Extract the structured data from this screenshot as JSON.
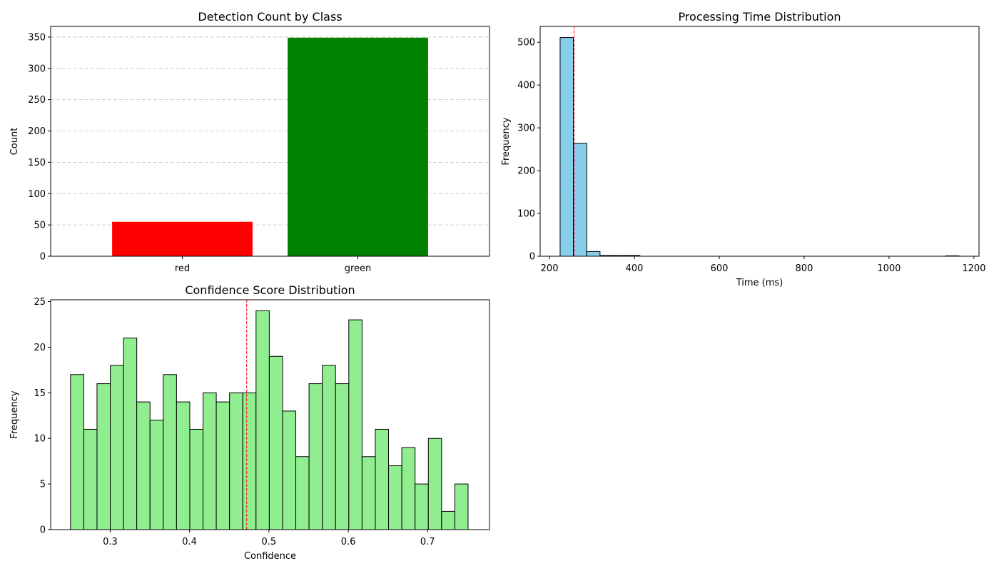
{
  "chart_data": [
    {
      "type": "bar",
      "title": "Detection Count by Class",
      "xlabel": "",
      "ylabel": "Count",
      "categories": [
        "red",
        "green"
      ],
      "values": [
        55,
        349
      ],
      "bar_colors": [
        "#ff0000",
        "#008000"
      ],
      "ylim": [
        0,
        367
      ],
      "yticks": [
        0,
        50,
        100,
        150,
        200,
        250,
        300,
        350
      ],
      "grid": "y-dashed"
    },
    {
      "type": "bar",
      "title": "Processing Time Distribution",
      "xlabel": "Time (ms)",
      "ylabel": "Frequency",
      "bin_start": 225,
      "bin_width": 31.33,
      "counts": [
        511,
        264,
        11,
        2,
        2,
        2,
        0,
        0,
        0,
        0,
        0,
        0,
        0,
        0,
        0,
        0,
        0,
        0,
        0,
        0,
        0,
        0,
        0,
        0,
        0,
        0,
        0,
        0,
        0,
        1
      ],
      "bar_color": "#87ceeb",
      "mean_line": 258,
      "mean_line_color": "#ff0000",
      "xlim": [
        178,
        1212
      ],
      "ylim": [
        0,
        537
      ],
      "xticks": [
        200,
        400,
        600,
        800,
        1000,
        1200
      ],
      "yticks": [
        0,
        100,
        200,
        300,
        400,
        500
      ],
      "grid": "off"
    },
    {
      "type": "bar",
      "title": "Confidence Score Distribution",
      "xlabel": "Confidence",
      "ylabel": "Frequency",
      "bin_start": 0.25,
      "bin_width": 0.0167,
      "counts": [
        17,
        11,
        16,
        18,
        21,
        14,
        12,
        17,
        14,
        11,
        15,
        14,
        15,
        15,
        24,
        19,
        13,
        8,
        16,
        18,
        16,
        23,
        8,
        11,
        7,
        9,
        5,
        10,
        2,
        5
      ],
      "bar_color": "#90ee90",
      "mean_line": 0.472,
      "mean_line_color": "#ff0000",
      "xlim": [
        0.225,
        0.778
      ],
      "ylim": [
        0,
        25.2
      ],
      "xticks": [
        0.3,
        0.4,
        0.5,
        0.6,
        0.7
      ],
      "yticks": [
        0,
        5,
        10,
        15,
        20,
        25
      ],
      "grid": "off"
    }
  ]
}
